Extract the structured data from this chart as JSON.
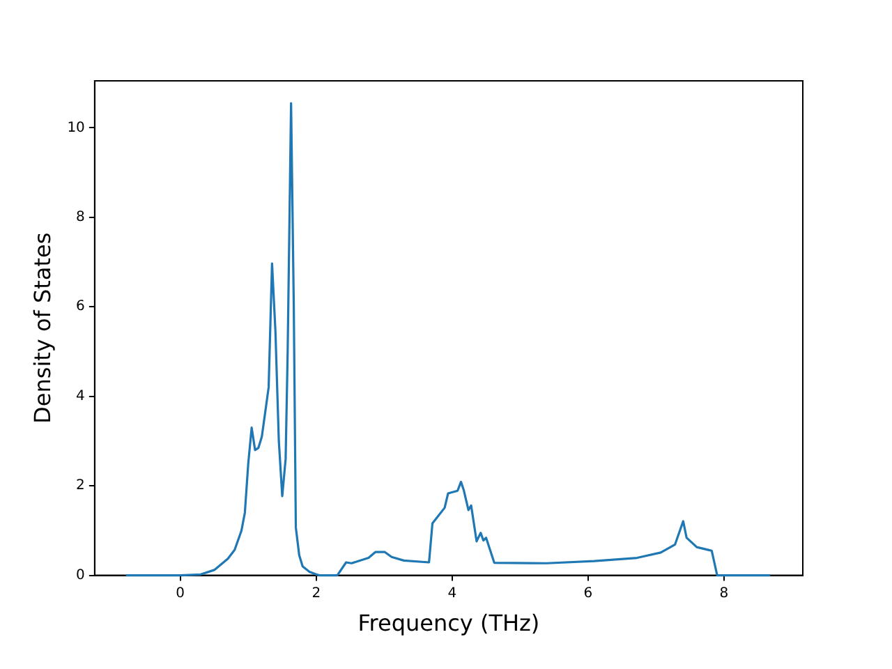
{
  "chart_data": {
    "type": "line",
    "xlabel": "Frequency (THz)",
    "ylabel": "Density of States",
    "x": [
      -0.8,
      0,
      0.3,
      0.5,
      0.7,
      0.8,
      0.9,
      0.95,
      1.0,
      1.05,
      1.1,
      1.15,
      1.2,
      1.25,
      1.3,
      1.35,
      1.4,
      1.45,
      1.5,
      1.55,
      1.58,
      1.63,
      1.67,
      1.7,
      1.75,
      1.8,
      1.9,
      2.0,
      2.05,
      2.31,
      2.44,
      2.52,
      2.77,
      2.87,
      3.01,
      3.11,
      3.29,
      3.66,
      3.71,
      3.89,
      3.94,
      4.08,
      4.13,
      4.17,
      4.24,
      4.28,
      4.36,
      4.42,
      4.46,
      4.5,
      4.62,
      5.39,
      6.09,
      6.72,
      7.07,
      7.28,
      7.4,
      7.45,
      7.6,
      7.82,
      7.9,
      8.68
    ],
    "series": [
      {
        "color": "#1f77b4",
        "values": [
          0,
          0,
          0.02,
          0.12,
          0.37,
          0.57,
          1.0,
          1.4,
          2.5,
          3.3,
          2.8,
          2.85,
          3.1,
          3.65,
          4.2,
          6.97,
          5.45,
          3.0,
          1.77,
          2.6,
          5.0,
          10.55,
          6.0,
          1.07,
          0.45,
          0.2,
          0.08,
          0.02,
          0,
          0,
          0.29,
          0.27,
          0.39,
          0.52,
          0.52,
          0.41,
          0.33,
          0.29,
          1.16,
          1.51,
          1.83,
          1.89,
          2.09,
          1.91,
          1.46,
          1.56,
          0.76,
          0.95,
          0.78,
          0.84,
          0.28,
          0.27,
          0.32,
          0.39,
          0.51,
          0.69,
          1.21,
          0.84,
          0.63,
          0.55,
          0,
          0
        ]
      }
    ],
    "xlim": [
      -1.26,
      9.16
    ],
    "xticks": [
      0,
      2,
      4,
      6,
      8
    ],
    "ylim": [
      0,
      11.05
    ],
    "yticks": [
      0,
      2,
      4,
      6,
      8,
      10
    ],
    "grid": false,
    "legend": false,
    "line_style": "solid",
    "marker": "none"
  }
}
